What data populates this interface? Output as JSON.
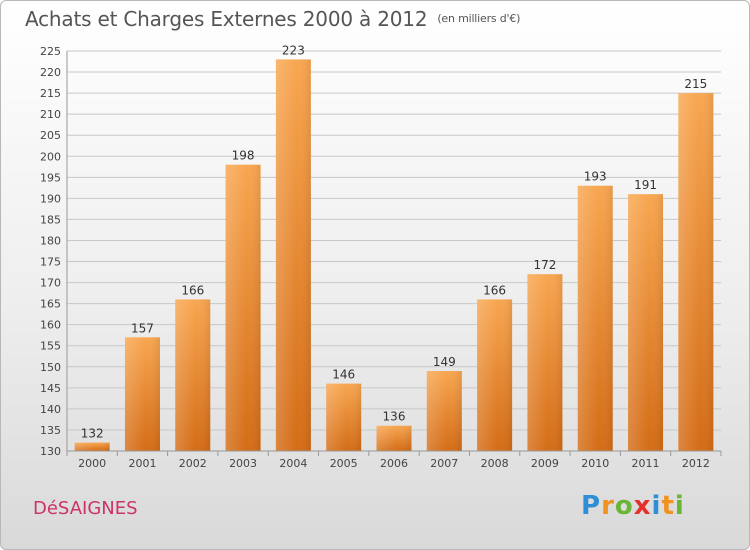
{
  "title": "Achats et Charges Externes 2000 à 2012",
  "subtitle": "(en milliers d'€)",
  "commune": "DéSAIGNES",
  "logo": {
    "letters": [
      "P",
      "r",
      "o",
      "x",
      "i",
      "t",
      "i"
    ],
    "colors": [
      "#2e8fd6",
      "#f0921f",
      "#6ab436",
      "#e5302c",
      "#2e8fd6",
      "#f0921f",
      "#6ab436"
    ]
  },
  "colors": {
    "bar_top": "#f8a650",
    "bar_bottom": "#d46c16",
    "label": "#333333"
  },
  "chart_data": {
    "type": "bar",
    "categories": [
      "2000",
      "2001",
      "2002",
      "2003",
      "2004",
      "2005",
      "2006",
      "2007",
      "2008",
      "2009",
      "2010",
      "2011",
      "2012"
    ],
    "values": [
      132,
      157,
      166,
      198,
      223,
      146,
      136,
      149,
      166,
      172,
      193,
      191,
      215
    ],
    "ylim": [
      130,
      225
    ],
    "yticks": [
      130,
      135,
      140,
      145,
      150,
      155,
      160,
      165,
      170,
      175,
      180,
      185,
      190,
      195,
      200,
      205,
      210,
      215,
      220,
      225
    ],
    "grid": true,
    "legend": "none"
  }
}
